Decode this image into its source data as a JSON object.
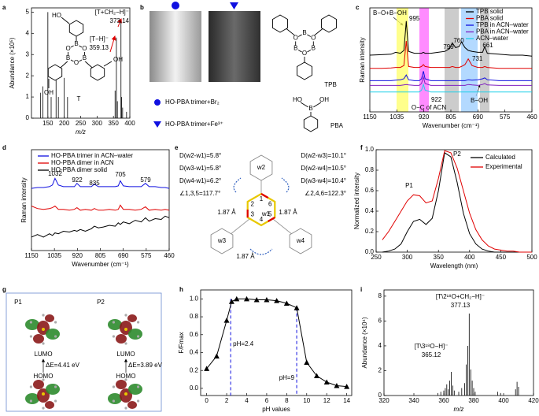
{
  "panel_letters": [
    "a",
    "b",
    "c",
    "d",
    "e",
    "f",
    "g",
    "h",
    "i"
  ],
  "chart_data": [
    {
      "type": "stem",
      "xlabel": "m/z",
      "ylabel": "Abundance (×10⁵)",
      "color": "#000000",
      "x": [
        128,
        135,
        150,
        160,
        175,
        182,
        200,
        210,
        355,
        359,
        362,
        373,
        375,
        378,
        390
      ],
      "values": [
        1.2,
        1.5,
        5.0,
        1.0,
        1.8,
        1.0,
        1.9,
        1.0,
        1.3,
        3.8,
        0.8,
        4.6,
        1.0,
        0.5,
        0.3
      ],
      "xlim": [
        100,
        400
      ],
      "xticks": [
        150,
        200,
        250,
        300,
        350,
        400
      ],
      "ylim": [
        0,
        5.2
      ],
      "yticks": [
        0,
        1,
        2,
        3,
        4,
        5
      ],
      "annotations": [
        "[T+CH₂−H]⁻",
        "373.14",
        "[T−H]⁻",
        "359.13"
      ],
      "structure": {
        "name": "T",
        "atoms": [
          "B",
          "O",
          "B",
          "O",
          "B",
          "O",
          "HO",
          "OH",
          "OH"
        ]
      }
    },
    {
      "type": "line",
      "xlabel": "Wavenumber (cm⁻¹)",
      "ylabel": "Raman intensity",
      "legend": "upper right",
      "x": [
        1150,
        1100,
        1060,
        1040,
        1020,
        1005,
        995,
        985,
        960,
        940,
        930,
        922,
        915,
        890,
        860,
        830,
        810,
        799,
        785,
        770,
        760,
        745,
        731,
        715,
        690,
        670,
        661,
        650,
        600,
        550,
        500,
        460
      ],
      "xlim": [
        1150,
        460
      ],
      "xticks": [
        1150,
        1035,
        920,
        805,
        690,
        575,
        460
      ],
      "ylim": [
        0,
        11
      ],
      "series": [
        {
          "name": "TPB solid",
          "color": "#000000",
          "values": [
            6.0,
            6.05,
            6.1,
            6.3,
            6.2,
            6.5,
            9.6,
            6.4,
            6.2,
            6.2,
            6.2,
            6.3,
            6.2,
            6.2,
            6.3,
            6.4,
            6.7,
            7.3,
            6.8,
            6.9,
            7.4,
            6.8,
            6.5,
            6.4,
            6.3,
            6.3,
            6.9,
            6.2,
            6.1,
            6.0,
            6.0,
            5.9
          ]
        },
        {
          "name": "PBA solid",
          "color": "#e00000",
          "values": [
            4.6,
            4.6,
            4.65,
            4.7,
            4.7,
            4.9,
            7.5,
            4.8,
            4.7,
            4.7,
            4.8,
            5.0,
            4.8,
            4.7,
            4.7,
            4.7,
            4.7,
            4.8,
            4.7,
            4.7,
            4.8,
            5.0,
            5.6,
            4.9,
            4.7,
            4.7,
            4.8,
            4.7,
            4.6,
            4.6,
            4.6,
            4.6
          ]
        },
        {
          "name": "TPB in ACN–water",
          "color": "#1010e0",
          "values": [
            3.3,
            3.3,
            3.3,
            3.35,
            3.4,
            3.5,
            3.9,
            3.4,
            3.3,
            3.3,
            3.5,
            4.3,
            3.5,
            3.3,
            3.3,
            3.3,
            3.3,
            3.3,
            3.3,
            3.3,
            3.3,
            3.3,
            3.4,
            3.35,
            3.4,
            3.5,
            3.6,
            3.4,
            3.3,
            3.3,
            3.3,
            3.3
          ]
        },
        {
          "name": "PBA in ACN–water",
          "color": "#8020c0",
          "values": [
            2.8,
            2.8,
            2.8,
            2.8,
            2.8,
            2.85,
            2.9,
            2.85,
            2.8,
            2.8,
            3.0,
            3.7,
            3.0,
            2.8,
            2.8,
            2.8,
            2.8,
            2.8,
            2.8,
            2.8,
            2.8,
            2.8,
            2.9,
            2.85,
            2.8,
            2.9,
            3.0,
            2.85,
            2.8,
            2.8,
            2.8,
            2.8
          ]
        },
        {
          "name": "ACN–water",
          "color": "#20d0e8",
          "values": [
            2.1,
            2.1,
            2.1,
            2.1,
            2.1,
            2.1,
            2.1,
            2.1,
            2.1,
            2.1,
            2.3,
            2.9,
            2.3,
            2.1,
            2.1,
            2.1,
            2.1,
            2.1,
            2.1,
            2.1,
            2.1,
            2.1,
            2.1,
            2.1,
            2.1,
            2.1,
            2.1,
            2.1,
            2.1,
            2.1,
            2.1,
            2.1
          ]
        }
      ],
      "annotations": [
        "B−O+B−OH",
        "995",
        "799",
        "760",
        "661",
        "731",
        "922",
        "B−OH",
        "O−C of ACN"
      ]
    },
    {
      "type": "line",
      "xlabel": "Wavenumber (cm⁻¹)",
      "ylabel": "Raman intensity",
      "legend": "upper left",
      "x": [
        1150,
        1120,
        1090,
        1060,
        1045,
        1032,
        1015,
        990,
        960,
        935,
        922,
        905,
        880,
        850,
        835,
        815,
        790,
        760,
        730,
        715,
        705,
        690,
        660,
        630,
        600,
        579,
        560,
        530,
        500,
        480,
        460
      ],
      "xlim": [
        1150,
        460
      ],
      "xticks": [
        1150,
        1035,
        920,
        805,
        690,
        575,
        460
      ],
      "ylim": [
        0,
        12
      ],
      "series": [
        {
          "name": "HO-PBA trimer in ACN–water",
          "color": "#1010e0",
          "values": [
            7.4,
            7.5,
            7.5,
            7.6,
            7.8,
            8.6,
            7.8,
            7.6,
            7.6,
            7.6,
            8.0,
            7.6,
            7.6,
            7.6,
            7.9,
            7.6,
            7.6,
            7.6,
            7.6,
            7.7,
            8.3,
            7.7,
            7.6,
            7.6,
            7.6,
            8.0,
            7.6,
            7.6,
            7.5,
            7.5,
            7.4
          ]
        },
        {
          "name": "HO-PBA dimer in ACN",
          "color": "#e00000",
          "values": [
            5.3,
            5.0,
            4.9,
            5.0,
            5.1,
            5.3,
            4.9,
            4.9,
            4.8,
            4.9,
            5.1,
            4.8,
            4.9,
            4.8,
            5.0,
            4.8,
            4.8,
            4.9,
            4.8,
            4.9,
            5.4,
            4.9,
            4.9,
            4.8,
            4.9,
            5.2,
            4.8,
            4.9,
            4.8,
            4.9,
            4.8
          ]
        },
        {
          "name": "HO-PBA dimer solid",
          "color": "#000000",
          "values": [
            1.6,
            1.9,
            1.6,
            2.0,
            1.8,
            2.1,
            2.0,
            2.3,
            2.2,
            2.4,
            2.3,
            2.5,
            2.3,
            2.6,
            2.9,
            2.7,
            2.8,
            3.0,
            2.9,
            3.3,
            3.1,
            3.4,
            3.2,
            3.6,
            3.4,
            3.9,
            3.5,
            3.8,
            3.7,
            4.1,
            3.9
          ]
        }
      ],
      "annotations": [
        "1032",
        "922",
        "835",
        "705",
        "579"
      ]
    },
    {
      "type": "line",
      "xlabel": "Wavelength (nm)",
      "ylabel": "Normalized intensity",
      "legend": "upper right",
      "x": [
        260,
        270,
        280,
        290,
        300,
        310,
        320,
        330,
        340,
        350,
        360,
        370,
        380,
        390,
        400,
        410,
        420,
        430,
        440,
        450,
        460,
        470,
        480,
        490,
        500
      ],
      "xlim": [
        250,
        500
      ],
      "xticks": [
        250,
        300,
        350,
        400,
        450,
        500
      ],
      "ylim": [
        0,
        1.0
      ],
      "yticks": [
        {
          "value": 0,
          "label": "0.0"
        },
        {
          "value": 0.2,
          "label": "0.2"
        },
        {
          "value": 0.4,
          "label": "0.4"
        },
        {
          "value": 0.6,
          "label": "0.6"
        },
        {
          "value": 0.8,
          "label": "0.8"
        },
        {
          "value": 1,
          "label": "1.0"
        }
      ],
      "series": [
        {
          "name": "Calculated",
          "color": "#000000",
          "values": [
            0,
            0.01,
            0.03,
            0.08,
            0.2,
            0.3,
            0.32,
            0.27,
            0.33,
            0.6,
            0.97,
            0.93,
            0.68,
            0.38,
            0.18,
            0.08,
            0.03,
            0.01,
            0,
            0,
            0,
            0,
            0,
            0,
            0
          ]
        },
        {
          "name": "Experimental",
          "color": "#e00000",
          "values": [
            0.12,
            0.2,
            0.3,
            0.4,
            0.5,
            0.56,
            0.55,
            0.48,
            0.5,
            0.72,
            0.99,
            0.97,
            0.82,
            0.6,
            0.38,
            0.22,
            0.12,
            0.06,
            0.03,
            0.02,
            0.01,
            0.01,
            0,
            0,
            0
          ]
        }
      ],
      "annotations": [
        "P1",
        "P2"
      ]
    },
    {
      "type": "line",
      "markers": "triangle",
      "xlabel": "pH values",
      "ylabel": "F/Fmax",
      "x": [
        0,
        1,
        2,
        2.5,
        3,
        4,
        5,
        6,
        7,
        8,
        9,
        10,
        11,
        12,
        13,
        14
      ],
      "xlim": [
        -0.6,
        14.5
      ],
      "xticks": [
        0,
        2,
        4,
        6,
        8,
        10,
        12,
        14
      ],
      "ylim": [
        -0.08,
        1.1
      ],
      "yticks": [
        {
          "value": 0,
          "label": "0.0"
        },
        {
          "value": 0.2,
          "label": "0.2"
        },
        {
          "value": 0.4,
          "label": "0.4"
        },
        {
          "value": 0.6,
          "label": "0.6"
        },
        {
          "value": 0.8,
          "label": "0.8"
        },
        {
          "value": 1,
          "label": "1.0"
        }
      ],
      "series": [
        {
          "color": "#000000",
          "values": [
            0.22,
            0.36,
            0.76,
            0.97,
            1.0,
            1.0,
            0.99,
            0.99,
            0.98,
            0.95,
            0.9,
            0.29,
            0.14,
            0.07,
            0.03,
            0.02
          ]
        }
      ],
      "reference_lines": [
        2.4,
        9
      ],
      "reference_labels": [
        "pH=2.4",
        "pH=9"
      ],
      "reference_color": "#1010e0"
    },
    {
      "type": "stem",
      "xlabel": "m/z",
      "ylabel": "Abundance (×10⁴)",
      "color": "#000000",
      "x": [
        356,
        358,
        360,
        361,
        362,
        363,
        364,
        365,
        366,
        367,
        370,
        372,
        374,
        375,
        376,
        377,
        378,
        379,
        380,
        381,
        396,
        398,
        408,
        409,
        410
      ],
      "values": [
        0.2,
        0.3,
        0.4,
        0.6,
        0.9,
        0.5,
        1.2,
        1.9,
        0.8,
        0.4,
        0.3,
        0.6,
        1.0,
        2.5,
        4.0,
        6.6,
        2.1,
        1.2,
        0.6,
        0.3,
        0.3,
        0.2,
        0.5,
        1.1,
        0.7
      ],
      "xlim": [
        320,
        420
      ],
      "xticks": [
        320,
        340,
        360,
        380,
        400,
        420
      ],
      "ylim": [
        0,
        8.5
      ],
      "yticks": [
        0,
        2,
        4,
        6,
        8
      ],
      "annotations": [
        "[T\\2¹⁸O+CH₂−H]⁻",
        "377.13",
        "[T\\3¹⁸O−H]⁻",
        "365.12"
      ]
    }
  ],
  "panel_b": {
    "labels": [
      "HO-PBA trimer+Br₂",
      "HO-PBA trimer+Fe³⁺"
    ],
    "structures": [
      {
        "name": "TPB",
        "atoms": [
          "B",
          "O",
          "B",
          "O",
          "B",
          "O"
        ]
      },
      {
        "name": "PBA",
        "atoms": [
          "B",
          "OH",
          "HO"
        ]
      }
    ]
  },
  "panel_e": {
    "dihedrals": [
      "D(w2-w1)=5.8°",
      "D(w3-w1)=5.8°",
      "D(w4-w1)=6.2°",
      "D(w2-w3)=10.1°",
      "D(w2-w4)=10.5°",
      "D(w3-w4)=10.4°"
    ],
    "angles": [
      "∠1,3,5=117.7°",
      "∠2,4,6=122.3°"
    ],
    "distances": [
      "1.87 Å",
      "1.87 Å",
      "1.87 Å"
    ],
    "rings": [
      "w1",
      "w2",
      "w3",
      "w4"
    ],
    "atom_numbers": [
      "1",
      "2",
      "3",
      "4",
      "5",
      "6"
    ]
  },
  "panel_g": {
    "columns": [
      {
        "name": "P1",
        "lumo": "LUMO",
        "homo": "HOMO",
        "gap": "ΔE=4.41 eV"
      },
      {
        "name": "P2",
        "lumo": "LUMO",
        "homo": "HOMO",
        "gap": "ΔE=3.89 eV"
      }
    ]
  }
}
